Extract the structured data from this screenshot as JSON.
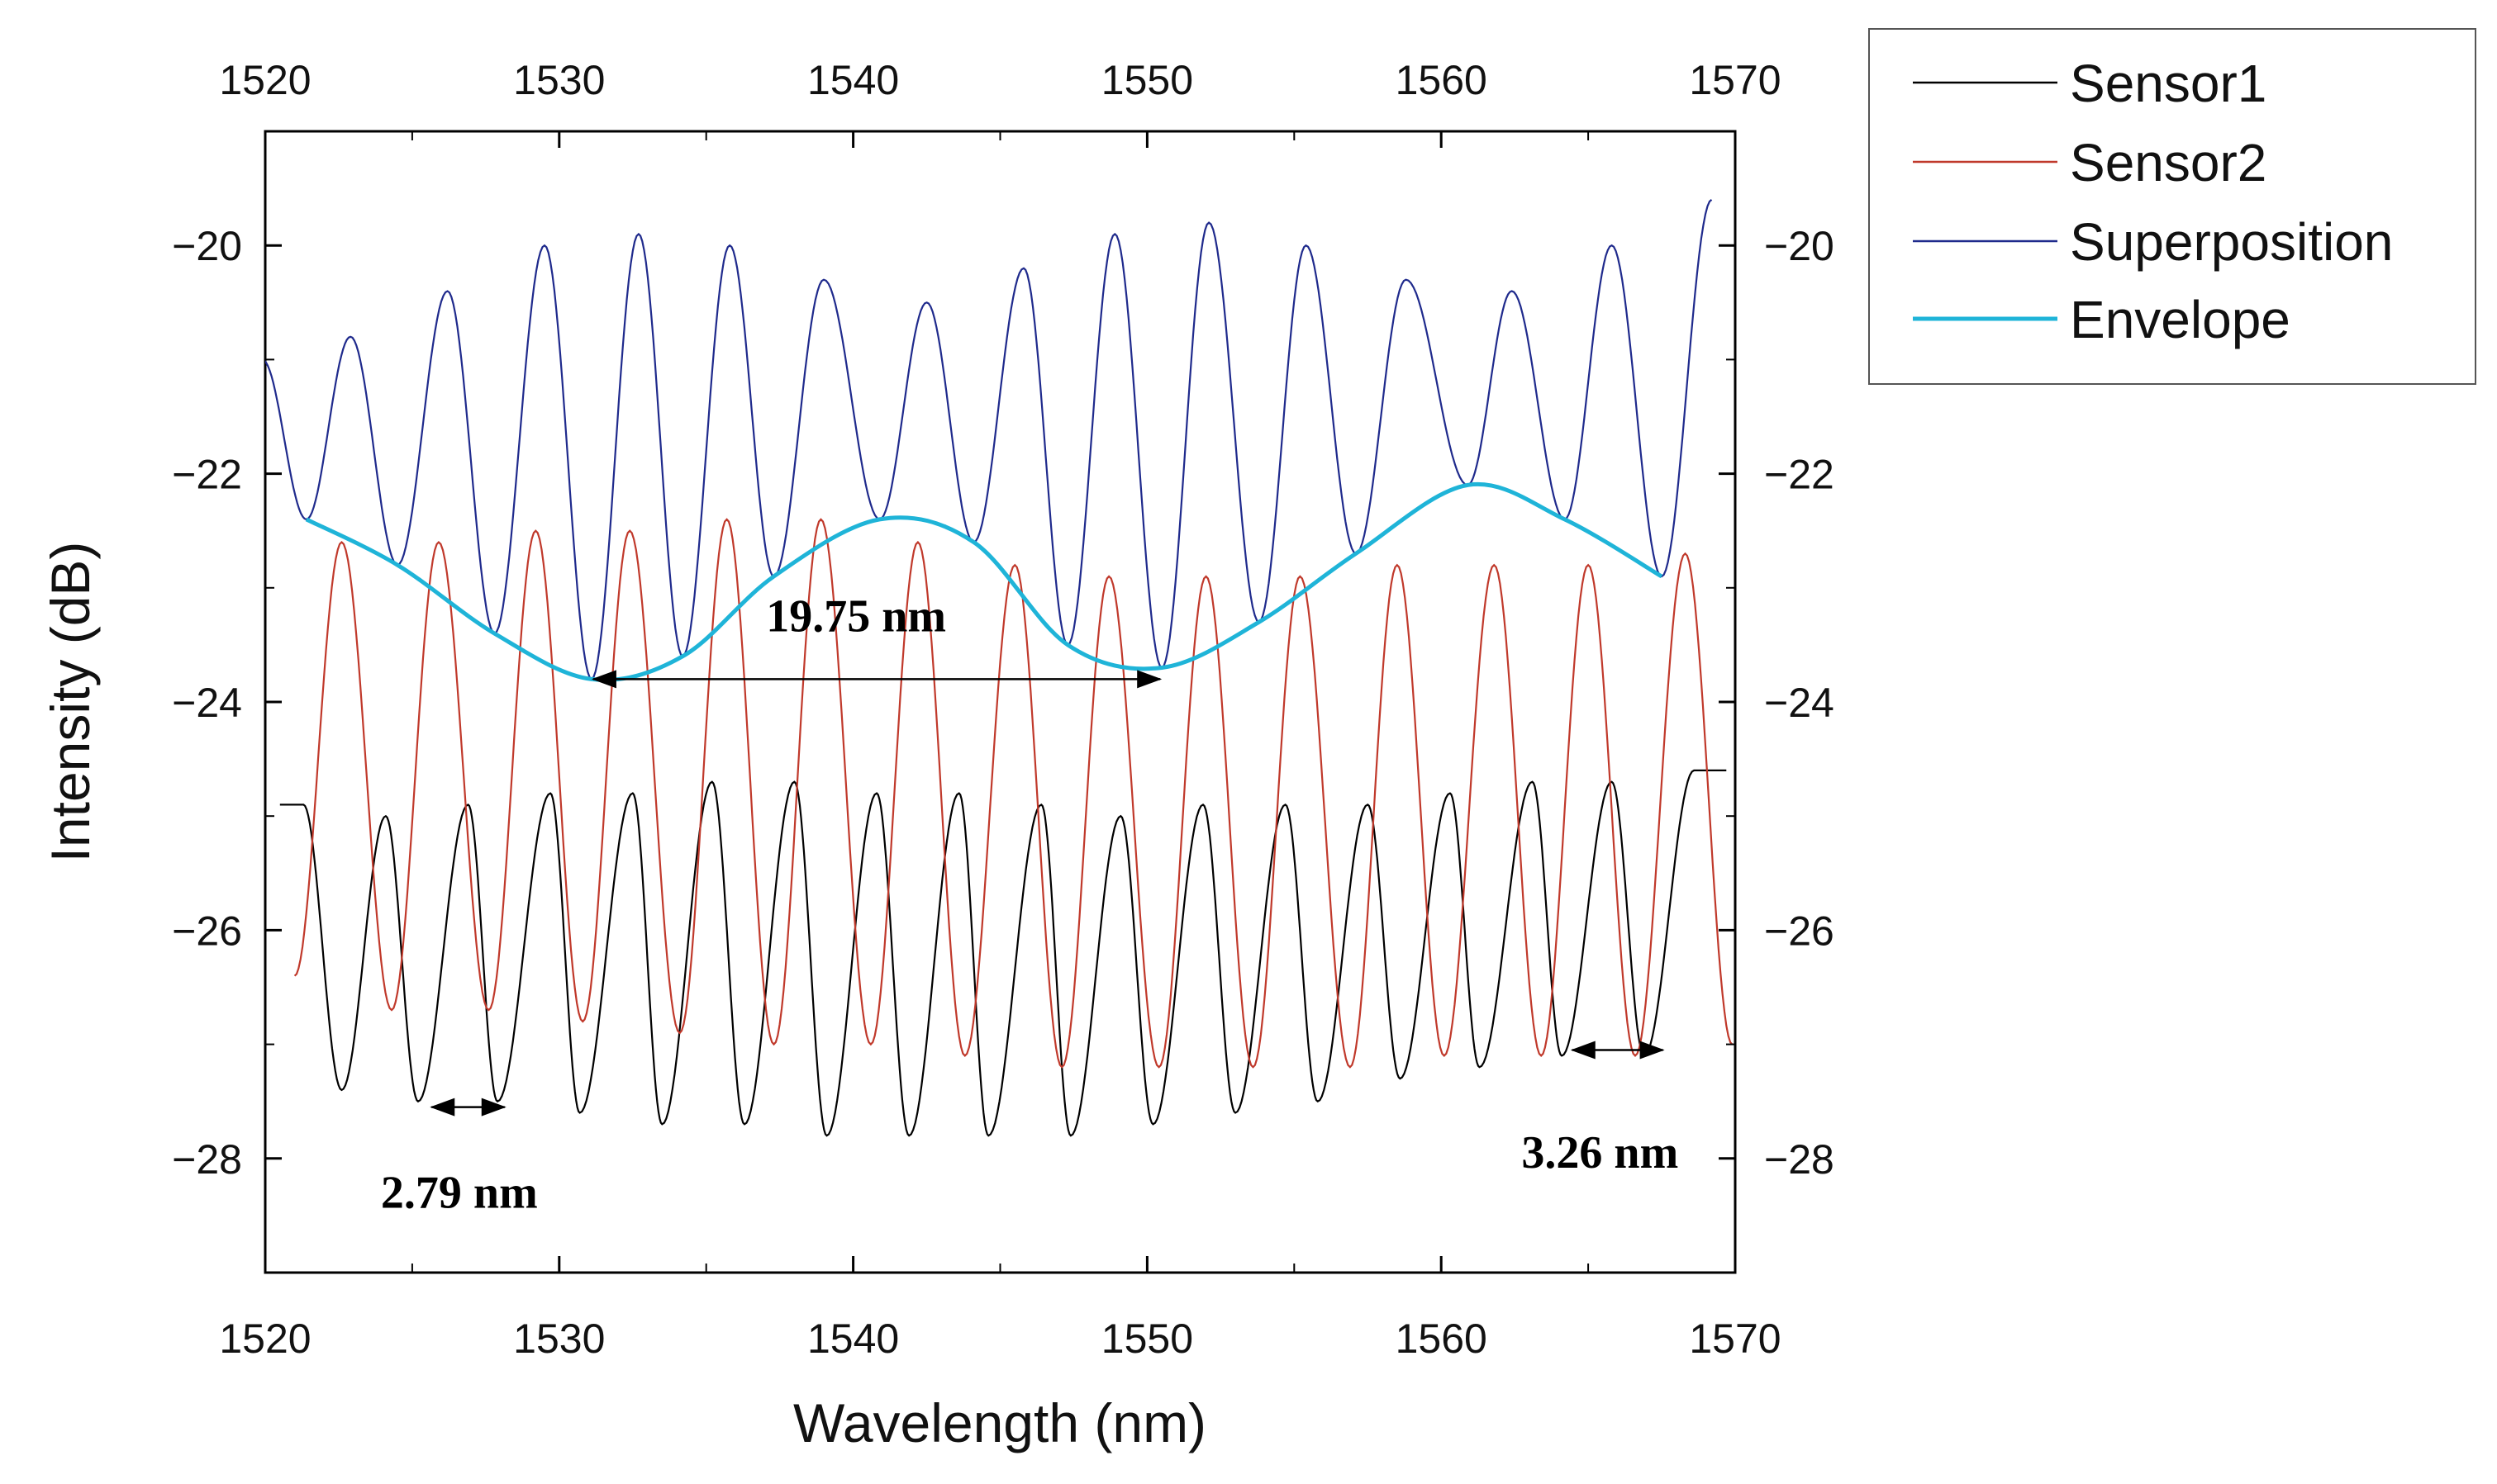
{
  "chart_data": {
    "type": "line",
    "title": "",
    "xlabel": "Wavelength (nm)",
    "ylabel": "Intensity (dB)",
    "xlim": [
      1520,
      1570
    ],
    "ylim": [
      -29,
      -19
    ],
    "x_ticks": [
      1520,
      1530,
      1540,
      1550,
      1560,
      1570
    ],
    "y_ticks": [
      -28,
      -26,
      -24,
      -22,
      -20
    ],
    "x_tick_labels": [
      "1520",
      "1530",
      "1540",
      "1550",
      "1560",
      "1570"
    ],
    "y_tick_labels": [
      "−28",
      "−26",
      "−24",
      "−22",
      "−20"
    ],
    "mirrored_axes": "top and right axes repeat the tick labels",
    "grid": false,
    "legend_position": "outside top-right",
    "series": [
      {
        "name": "Sensor1",
        "color": "#000000",
        "form": "periodic fringe, period 2.79 nm",
        "x": [
          1520.5,
          1522.6,
          1525.2,
          1527.9,
          1530.7,
          1533.5,
          1536.3,
          1539.1,
          1541.9,
          1544.6,
          1547.4,
          1550.2,
          1553.0,
          1555.8,
          1558.6,
          1561.3,
          1564.1,
          1566.9,
          1569.7
        ],
        "y": [
          -24.9,
          -27.4,
          -27.5,
          -27.5,
          -27.6,
          -27.7,
          -27.7,
          -27.8,
          -27.8,
          -27.8,
          -27.8,
          -27.7,
          -27.6,
          -27.5,
          -27.3,
          -27.2,
          -27.1,
          -27.1,
          -24.6
        ],
        "x_maxima": [
          1521.3,
          1524.1,
          1526.9,
          1529.7,
          1532.5,
          1535.2,
          1538.0,
          1540.8,
          1543.6,
          1546.4,
          1549.1,
          1551.9,
          1554.7,
          1557.5,
          1560.3,
          1563.1,
          1565.8,
          1568.6
        ],
        "y_maxima": [
          -24.9,
          -25.0,
          -24.9,
          -24.8,
          -24.8,
          -24.7,
          -24.7,
          -24.8,
          -24.8,
          -24.9,
          -25.0,
          -24.9,
          -24.9,
          -24.9,
          -24.8,
          -24.7,
          -24.7,
          -24.6
        ]
      },
      {
        "name": "Sensor2",
        "color": "#c0392b",
        "form": "periodic fringe, period 3.26 nm",
        "x_minima": [
          1521.0,
          1524.3,
          1527.6,
          1530.8,
          1534.1,
          1537.3,
          1540.6,
          1543.8,
          1547.1,
          1550.4,
          1553.6,
          1556.9,
          1560.1,
          1563.4,
          1566.6,
          1569.9
        ],
        "y_minima": [
          -26.4,
          -26.7,
          -26.7,
          -26.8,
          -26.9,
          -27.0,
          -27.0,
          -27.1,
          -27.2,
          -27.2,
          -27.2,
          -27.2,
          -27.1,
          -27.1,
          -27.1,
          -27.0
        ],
        "x_maxima": [
          1522.6,
          1525.9,
          1529.2,
          1532.4,
          1535.7,
          1538.9,
          1542.2,
          1545.5,
          1548.7,
          1552.0,
          1555.2,
          1558.5,
          1561.8,
          1565.0,
          1568.3
        ],
        "y_maxima": [
          -22.6,
          -22.6,
          -22.5,
          -22.5,
          -22.4,
          -22.4,
          -22.6,
          -22.8,
          -22.9,
          -22.9,
          -22.9,
          -22.8,
          -22.8,
          -22.8,
          -22.7
        ]
      },
      {
        "name": "Superposition",
        "color": "#1f2a8c",
        "form": "superposition of the two fringes",
        "x_minima": [
          1521.4,
          1524.5,
          1527.8,
          1531.1,
          1534.2,
          1537.3,
          1540.9,
          1544.1,
          1547.3,
          1550.5,
          1553.8,
          1557.1,
          1560.9,
          1564.2,
          1567.5
        ],
        "y_minima": [
          -22.4,
          -22.8,
          -23.4,
          -23.8,
          -23.6,
          -22.9,
          -22.4,
          -22.6,
          -23.5,
          -23.7,
          -23.3,
          -22.7,
          -22.1,
          -22.4,
          -22.9
        ],
        "x_maxima": [
          1519.9,
          1522.9,
          1526.2,
          1529.5,
          1532.7,
          1535.8,
          1539.0,
          1542.5,
          1545.8,
          1548.9,
          1552.1,
          1555.4,
          1558.8,
          1562.4,
          1565.8,
          1569.2
        ],
        "y_maxima": [
          -21.0,
          -20.8,
          -20.4,
          -20.0,
          -19.9,
          -20.0,
          -20.3,
          -20.5,
          -20.2,
          -19.9,
          -19.8,
          -20.0,
          -20.3,
          -20.4,
          -20.0,
          -19.6
        ]
      },
      {
        "name": "Envelope",
        "color": "#1fb4d8",
        "form": "smooth envelope through the superposition minima",
        "x": [
          1521.4,
          1524.5,
          1527.8,
          1531.1,
          1534.2,
          1537.3,
          1540.9,
          1544.1,
          1547.3,
          1550.5,
          1553.8,
          1557.1,
          1560.9,
          1564.2,
          1567.5
        ],
        "y": [
          -22.4,
          -22.8,
          -23.4,
          -23.8,
          -23.6,
          -22.9,
          -22.4,
          -22.6,
          -23.5,
          -23.7,
          -23.3,
          -22.7,
          -22.1,
          -22.4,
          -22.9
        ]
      }
    ],
    "annotations": [
      {
        "text": "19.75 nm",
        "x1": 1531.1,
        "x2": 1550.5,
        "y": -23.8,
        "label_x": 1540.1,
        "label_y": -23.25
      },
      {
        "text": "2.79 nm",
        "x1": 1525.6,
        "x2": 1528.2,
        "y": -27.55,
        "label_x": 1526.6,
        "label_y": -28.3
      },
      {
        "text": "3.26 nm",
        "x1": 1564.4,
        "x2": 1567.6,
        "y": -27.05,
        "label_x": 1565.4,
        "label_y": -27.95
      }
    ]
  }
}
